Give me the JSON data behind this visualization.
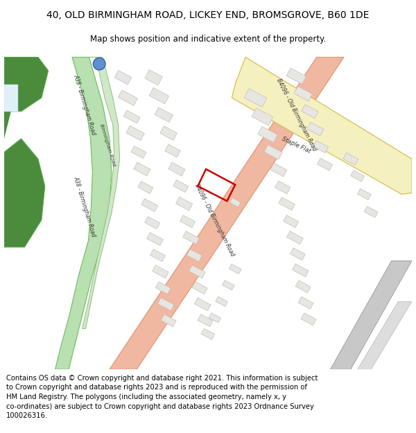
{
  "title": "40, OLD BIRMINGHAM ROAD, LICKEY END, BROMSGROVE, B60 1DE",
  "subtitle": "Map shows position and indicative extent of the property.",
  "footer_line1": "Contains OS data © Crown copyright and database right 2021. This information is subject",
  "footer_line2": "to Crown copyright and database rights 2023 and is reproduced with the permission of",
  "footer_line3": "HM Land Registry. The polygons (including the associated geometry, namely x, y",
  "footer_line4": "co-ordinates) are subject to Crown copyright and database rights 2023 Ordnance Survey",
  "footer_line5": "100026316.",
  "map_bg": "#ffffff",
  "road_b4096_color": "#f0b8a0",
  "road_b4096_outline": "#e09070",
  "road_a38_color": "#b8e0b0",
  "road_a38_outline": "#70b860",
  "road_staple_color": "#f5f0c0",
  "road_staple_outline": "#d4b840",
  "road_birm_color": "#d0e8c8",
  "road_birm_outline": "#80b870",
  "green_dark": "#4a8c3c",
  "green_light": "#8dc87a",
  "building_color": "#e8e6e2",
  "building_outline": "#c0bdb8",
  "rail_color": "#c8c8c8",
  "rail_outline": "#888888",
  "target_color": "#cc0000",
  "blue_dot": "#6090d0",
  "title_fontsize": 10,
  "subtitle_fontsize": 8.5,
  "footer_fontsize": 7.2,
  "label_color": "#333333",
  "label_fontsize": 5.0
}
